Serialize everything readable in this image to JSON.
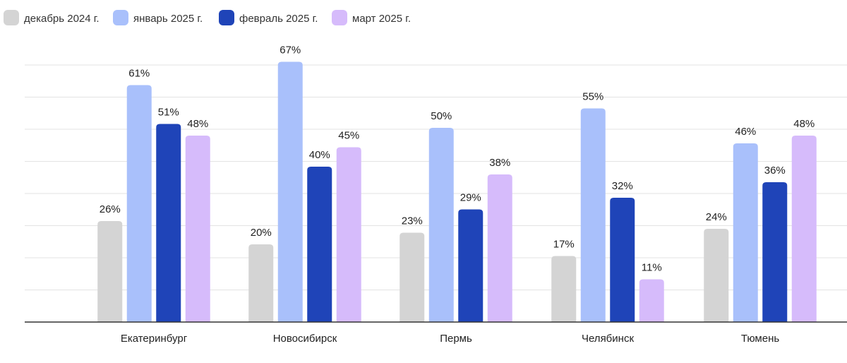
{
  "chart_data": {
    "type": "bar",
    "categories": [
      "Екатеринбург",
      "Новосибирск",
      "Пермь",
      "Челябинск",
      "Тюмень"
    ],
    "series": [
      {
        "name": "декабрь 2024 г.",
        "color": "#d4d4d4",
        "values": [
          26,
          20,
          23,
          17,
          24
        ],
        "labels": [
          "26%",
          "20%",
          "23%",
          "17%",
          "24%"
        ]
      },
      {
        "name": "январь 2025 г.",
        "color": "#a9c0fb",
        "values": [
          61,
          67,
          50,
          55,
          46
        ],
        "labels": [
          "61%",
          "67%",
          "50%",
          "55%",
          "46%"
        ]
      },
      {
        "name": "февраль 2025 г.",
        "color": "#1f44b8",
        "values": [
          51,
          40,
          29,
          32,
          36
        ],
        "labels": [
          "51%",
          "40%",
          "29%",
          "32%",
          "36%"
        ]
      },
      {
        "name": "март 2025 г.",
        "color": "#d6bbfb",
        "values": [
          48,
          45,
          38,
          11,
          48
        ],
        "labels": [
          "48%",
          "45%",
          "38%",
          "11%",
          "48%"
        ]
      }
    ],
    "title": "",
    "xlabel": "",
    "ylabel": "",
    "ylim": [
      0,
      80
    ],
    "grid": true,
    "legend_position": "top-left"
  }
}
